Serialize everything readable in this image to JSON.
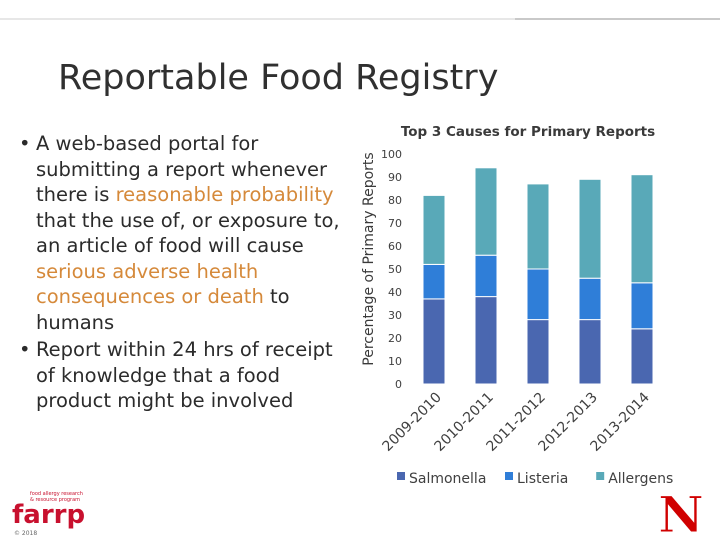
{
  "slide": {
    "title": "Reportable Food Registry",
    "bullets": [
      {
        "segments": [
          {
            "text": "A web-based portal for submitting a report whenever there is ",
            "highlight": false
          },
          {
            "text": "reasonable probability",
            "highlight": true
          },
          {
            "text": " that the use of, or exposure to, an article of food will cause ",
            "highlight": false
          },
          {
            "text": "serious adverse health consequences or death",
            "highlight": true
          },
          {
            "text": " to humans",
            "highlight": false
          }
        ]
      },
      {
        "segments": [
          {
            "text": "Report within 24 hrs of receipt of knowledge that a food product might be involved",
            "highlight": false
          }
        ]
      }
    ],
    "bullet_glyph": "•",
    "highlight_color": "#d5893a",
    "logo_left": {
      "text": "farrp",
      "tagline_1": "food allergy research",
      "tagline_2": "& resource program",
      "copyright": "© 2018",
      "color": "#c8102e"
    },
    "logo_right": {
      "text": "N",
      "color": "#d00000"
    }
  },
  "chart_data": {
    "type": "bar",
    "stacked": true,
    "title": "Top 3 Causes for Primary Reports",
    "xlabel": "",
    "ylabel": "Percentage of Primary Reports",
    "categories": [
      "2009-2010",
      "2010-2011",
      "2011-2012",
      "2012-2013",
      "2013-2014"
    ],
    "ylim": [
      0,
      100
    ],
    "yticks": [
      0,
      10,
      20,
      30,
      40,
      50,
      60,
      70,
      80,
      90,
      100
    ],
    "grid": false,
    "legend_position": "bottom",
    "series": [
      {
        "name": "Salmonella",
        "color": "#4a67b0",
        "values": [
          37,
          38,
          28,
          28,
          24
        ]
      },
      {
        "name": "Listeria",
        "color": "#2f7ed8",
        "values": [
          15,
          18,
          22,
          18,
          20
        ]
      },
      {
        "name": "Allergens",
        "color": "#59a9b8",
        "values": [
          30,
          38,
          37,
          43,
          47
        ]
      }
    ]
  }
}
